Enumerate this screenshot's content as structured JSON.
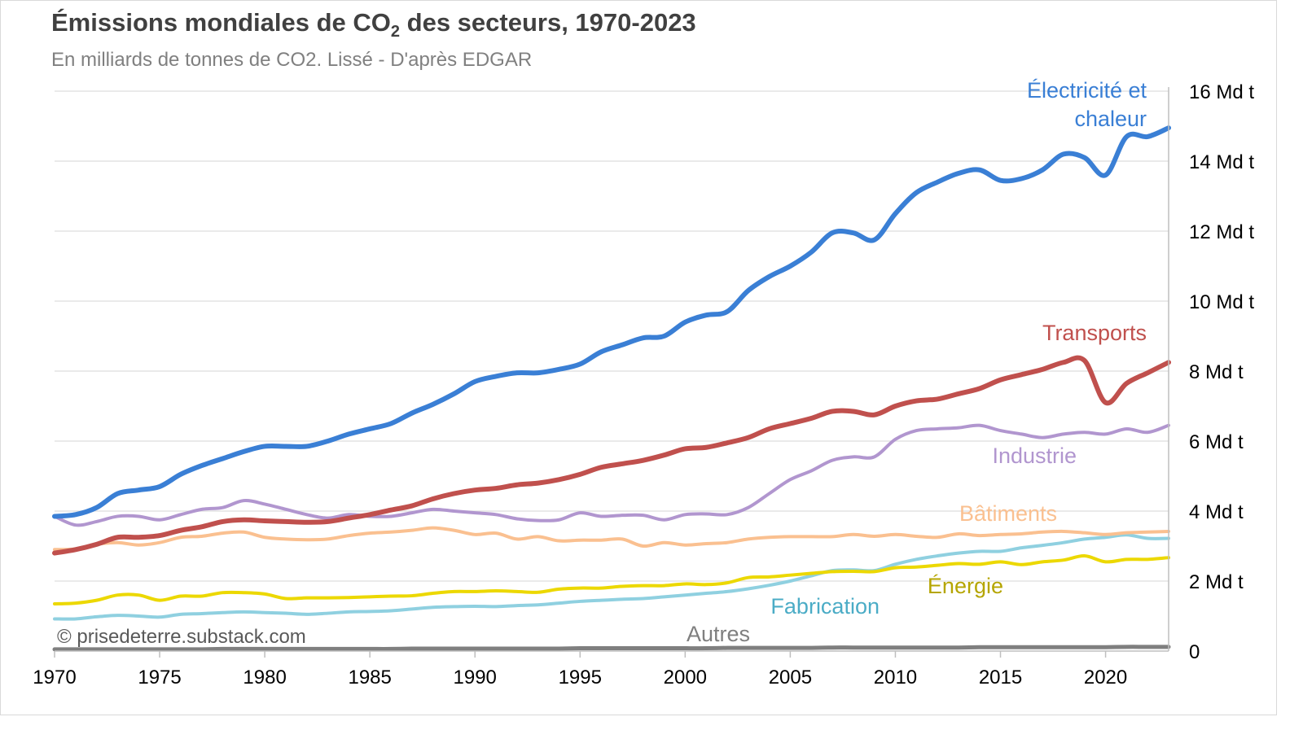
{
  "title_main": "Émissions mondiales de CO",
  "title_sub": "2",
  "title_rest": " des secteurs, 1970-2023",
  "subtitle": "En milliards de tonnes de CO2. Lissé - D'après EDGAR",
  "copyright": "© prisedeterre.substack.com",
  "chart_data": {
    "type": "line",
    "title": "Émissions mondiales de CO2 des secteurs, 1970-2023",
    "subtitle": "En milliards de tonnes de CO2. Lissé - D'après EDGAR",
    "xlabel": "",
    "ylabel": "",
    "xlim": [
      1970,
      2023
    ],
    "ylim": [
      0,
      16
    ],
    "grid": true,
    "x_ticks": [
      "1970",
      "1975",
      "1980",
      "1985",
      "1990",
      "1995",
      "2000",
      "2005",
      "2010",
      "2015",
      "2020"
    ],
    "y_ticks": [
      "0",
      "2 Md t",
      "4 Md t",
      "6 Md t",
      "8 Md t",
      "10 Md t",
      "12 Md t",
      "14 Md t",
      "16 Md t"
    ],
    "x": [
      1970,
      1971,
      1972,
      1973,
      1974,
      1975,
      1976,
      1977,
      1978,
      1979,
      1980,
      1981,
      1982,
      1983,
      1984,
      1985,
      1986,
      1987,
      1988,
      1989,
      1990,
      1991,
      1992,
      1993,
      1994,
      1995,
      1996,
      1997,
      1998,
      1999,
      2000,
      2001,
      2002,
      2003,
      2004,
      2005,
      2006,
      2007,
      2008,
      2009,
      2010,
      2011,
      2012,
      2013,
      2014,
      2015,
      2016,
      2017,
      2018,
      2019,
      2020,
      2021,
      2022,
      2023
    ],
    "series": [
      {
        "name": "Électricité et",
        "name2": "chaleur",
        "color": "#3a7fd5",
        "width": 6,
        "values": [
          3.85,
          3.9,
          4.1,
          4.5,
          4.6,
          4.7,
          5.05,
          5.3,
          5.5,
          5.7,
          5.85,
          5.85,
          5.85,
          6.0,
          6.2,
          6.35,
          6.5,
          6.8,
          7.05,
          7.35,
          7.7,
          7.85,
          7.95,
          7.95,
          8.05,
          8.2,
          8.55,
          8.75,
          8.95,
          9.0,
          9.4,
          9.6,
          9.7,
          10.3,
          10.7,
          11.0,
          11.4,
          11.95,
          11.95,
          11.75,
          12.5,
          13.1,
          13.4,
          13.65,
          13.75,
          13.45,
          13.5,
          13.75,
          14.2,
          14.1,
          13.6,
          14.7,
          14.7,
          14.95
        ]
      },
      {
        "name": "Transports",
        "color": "#c0504d",
        "width": 6,
        "values": [
          2.8,
          2.9,
          3.05,
          3.25,
          3.25,
          3.3,
          3.45,
          3.55,
          3.7,
          3.75,
          3.72,
          3.7,
          3.68,
          3.7,
          3.8,
          3.9,
          4.03,
          4.15,
          4.35,
          4.5,
          4.6,
          4.65,
          4.75,
          4.8,
          4.9,
          5.05,
          5.25,
          5.35,
          5.45,
          5.6,
          5.78,
          5.82,
          5.95,
          6.1,
          6.35,
          6.5,
          6.65,
          6.85,
          6.85,
          6.75,
          7.0,
          7.15,
          7.2,
          7.35,
          7.5,
          7.75,
          7.9,
          8.05,
          8.25,
          8.3,
          7.1,
          7.65,
          7.95,
          8.25
        ]
      },
      {
        "name": "Industrie",
        "color": "#b196cf",
        "width": 4,
        "values": [
          3.85,
          3.6,
          3.7,
          3.85,
          3.85,
          3.75,
          3.9,
          4.05,
          4.1,
          4.3,
          4.2,
          4.05,
          3.9,
          3.8,
          3.9,
          3.85,
          3.85,
          3.95,
          4.05,
          4.0,
          3.95,
          3.9,
          3.78,
          3.73,
          3.75,
          3.95,
          3.85,
          3.88,
          3.88,
          3.75,
          3.9,
          3.92,
          3.9,
          4.1,
          4.5,
          4.9,
          5.15,
          5.45,
          5.55,
          5.55,
          6.05,
          6.3,
          6.35,
          6.38,
          6.45,
          6.3,
          6.2,
          6.1,
          6.2,
          6.25,
          6.2,
          6.35,
          6.25,
          6.45
        ]
      },
      {
        "name": "Bâtiments",
        "color": "#fac090",
        "width": 4,
        "values": [
          2.9,
          2.92,
          3.05,
          3.1,
          3.03,
          3.1,
          3.25,
          3.28,
          3.37,
          3.4,
          3.25,
          3.2,
          3.18,
          3.2,
          3.3,
          3.37,
          3.4,
          3.45,
          3.52,
          3.45,
          3.33,
          3.37,
          3.2,
          3.27,
          3.15,
          3.17,
          3.17,
          3.2,
          3.0,
          3.1,
          3.03,
          3.07,
          3.1,
          3.2,
          3.25,
          3.27,
          3.27,
          3.27,
          3.33,
          3.28,
          3.33,
          3.28,
          3.25,
          3.35,
          3.3,
          3.33,
          3.35,
          3.4,
          3.42,
          3.38,
          3.33,
          3.38,
          3.4,
          3.42
        ]
      },
      {
        "name": "Énergie",
        "color": "#ecd800",
        "label_color": "#b5a500",
        "width": 4,
        "values": [
          1.35,
          1.37,
          1.45,
          1.6,
          1.6,
          1.45,
          1.57,
          1.57,
          1.67,
          1.67,
          1.63,
          1.5,
          1.52,
          1.52,
          1.53,
          1.55,
          1.57,
          1.58,
          1.65,
          1.7,
          1.7,
          1.72,
          1.7,
          1.68,
          1.77,
          1.8,
          1.8,
          1.85,
          1.87,
          1.87,
          1.92,
          1.9,
          1.95,
          2.1,
          2.12,
          2.17,
          2.22,
          2.27,
          2.28,
          2.27,
          2.38,
          2.4,
          2.45,
          2.5,
          2.48,
          2.55,
          2.47,
          2.55,
          2.6,
          2.72,
          2.55,
          2.62,
          2.62,
          2.67
        ]
      },
      {
        "name": "Fabrication",
        "color": "#8fd0e0",
        "label_color": "#4bacc6",
        "width": 4,
        "values": [
          0.92,
          0.92,
          0.98,
          1.02,
          1.0,
          0.97,
          1.05,
          1.07,
          1.1,
          1.12,
          1.1,
          1.08,
          1.05,
          1.08,
          1.12,
          1.13,
          1.15,
          1.2,
          1.25,
          1.27,
          1.28,
          1.27,
          1.3,
          1.32,
          1.37,
          1.42,
          1.45,
          1.48,
          1.5,
          1.55,
          1.6,
          1.65,
          1.7,
          1.78,
          1.88,
          2.0,
          2.15,
          2.3,
          2.32,
          2.3,
          2.48,
          2.62,
          2.72,
          2.8,
          2.85,
          2.85,
          2.95,
          3.02,
          3.1,
          3.2,
          3.25,
          3.32,
          3.22,
          3.22
        ]
      },
      {
        "name": "Autres",
        "color": "#7f7f7f",
        "width": 5,
        "values": [
          0.05,
          0.05,
          0.05,
          0.05,
          0.05,
          0.05,
          0.05,
          0.05,
          0.06,
          0.06,
          0.06,
          0.06,
          0.06,
          0.06,
          0.06,
          0.06,
          0.06,
          0.07,
          0.07,
          0.07,
          0.07,
          0.07,
          0.07,
          0.07,
          0.07,
          0.08,
          0.08,
          0.08,
          0.08,
          0.08,
          0.08,
          0.08,
          0.09,
          0.09,
          0.09,
          0.09,
          0.09,
          0.1,
          0.1,
          0.1,
          0.1,
          0.1,
          0.1,
          0.1,
          0.11,
          0.11,
          0.11,
          0.11,
          0.11,
          0.11,
          0.11,
          0.12,
          0.12,
          0.12
        ]
      }
    ]
  }
}
